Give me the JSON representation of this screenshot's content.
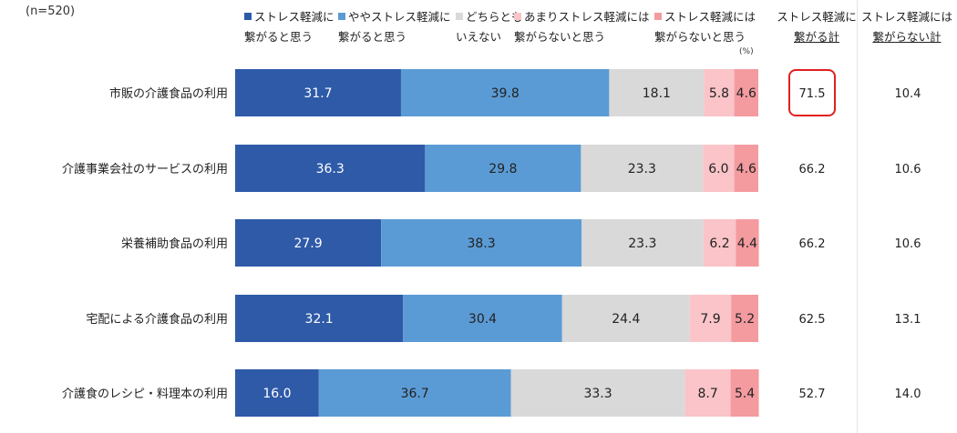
{
  "sample_note": "(n=520)",
  "unit_note": "(%)",
  "colors": {
    "s1": "#2e5aa8",
    "s2": "#5b9bd5",
    "s3": "#d9d9d9",
    "s4": "#fac4c8",
    "s5": "#f49ba0",
    "highlight": "#e02020"
  },
  "legend": [
    {
      "line1": "ストレス軽減に",
      "line2": "繋がると思う"
    },
    {
      "line1": "ややストレス軽減に",
      "line2": "繋がると思う"
    },
    {
      "line1": "どちらとも",
      "line2": "いえない"
    },
    {
      "line1": "あまりストレス軽減には",
      "line2": "繋がらないと思う"
    },
    {
      "line1": "ストレス軽減には",
      "line2": "繋がらないと思う"
    }
  ],
  "columns": {
    "positive": {
      "line1": "ストレス軽減に",
      "line2": "繋がる計"
    },
    "negative": {
      "line1": "ストレス軽減には",
      "line2": "繋がらない計"
    }
  },
  "chart_data": {
    "type": "bar",
    "orientation": "horizontal",
    "stacked": true,
    "xlim": [
      0,
      100
    ],
    "categories": [
      "市販の介護食品の利用",
      "介護事業会社のサービスの利用",
      "栄養補助食品の利用",
      "宅配による介護食品の利用",
      "介護食のレシピ・料理本の利用"
    ],
    "series": [
      {
        "name": "ストレス軽減に繋がると思う",
        "values": [
          31.7,
          36.3,
          27.9,
          32.1,
          16.0
        ]
      },
      {
        "name": "ややストレス軽減に繋がると思う",
        "values": [
          39.8,
          29.8,
          38.3,
          30.4,
          36.7
        ]
      },
      {
        "name": "どちらともいえない",
        "values": [
          18.1,
          23.3,
          23.3,
          24.4,
          33.3
        ]
      },
      {
        "name": "あまりストレス軽減には繋がらないと思う",
        "values": [
          5.8,
          6.0,
          6.2,
          7.9,
          8.7
        ]
      },
      {
        "name": "ストレス軽減には繋がらないと思う",
        "values": [
          4.6,
          4.6,
          4.4,
          5.2,
          5.4
        ]
      }
    ],
    "totals_positive": [
      "71.5",
      "66.2",
      "66.2",
      "62.5",
      "52.7"
    ],
    "totals_negative": [
      "10.4",
      "10.6",
      "10.6",
      "13.1",
      "14.0"
    ],
    "highlighted_total": {
      "column": "positive",
      "index": 0
    }
  }
}
